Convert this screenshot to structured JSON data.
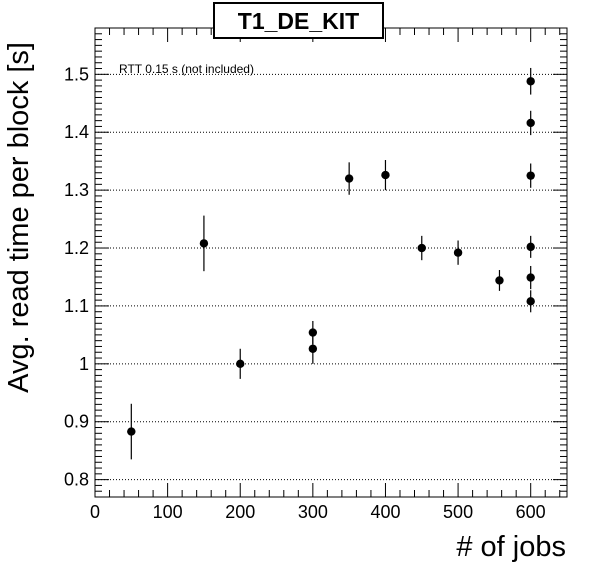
{
  "chart_data": {
    "type": "scatter",
    "title": "T1_DE_KIT",
    "xlabel": "# of jobs",
    "ylabel": "Avg. read time per block [s]",
    "annotation": "RTT 0.15 s (not included)",
    "xlim": [
      0,
      650
    ],
    "ylim": [
      0.77,
      1.58
    ],
    "x_ticks": [
      0,
      100,
      200,
      300,
      400,
      500,
      600
    ],
    "x_tick_labels": [
      "0",
      "100",
      "200",
      "300",
      "400",
      "500",
      "600"
    ],
    "y_ticks": [
      0.8,
      0.9,
      1.0,
      1.1,
      1.2,
      1.3,
      1.4,
      1.5
    ],
    "y_tick_labels": [
      "0.8",
      "0.9",
      "1",
      "1.1",
      "1.2",
      "1.3",
      "1.4",
      "1.5"
    ],
    "grid": "horizontal dotted at major y ticks",
    "marker_color": "#000000",
    "points": [
      {
        "x": 50,
        "y": 0.883,
        "err": 0.048
      },
      {
        "x": 150,
        "y": 1.208,
        "err": 0.048
      },
      {
        "x": 200,
        "y": 1.0,
        "err": 0.026
      },
      {
        "x": 300,
        "y": 1.054,
        "err": 0.02
      },
      {
        "x": 300,
        "y": 1.026,
        "err": 0.026
      },
      {
        "x": 350,
        "y": 1.32,
        "err": 0.028
      },
      {
        "x": 400,
        "y": 1.326,
        "err": 0.026
      },
      {
        "x": 450,
        "y": 1.2,
        "err": 0.021
      },
      {
        "x": 500,
        "y": 1.192,
        "err": 0.021
      },
      {
        "x": 557,
        "y": 1.144,
        "err": 0.018
      },
      {
        "x": 600,
        "y": 1.488,
        "err": 0.023
      },
      {
        "x": 600,
        "y": 1.416,
        "err": 0.021
      },
      {
        "x": 600,
        "y": 1.325,
        "err": 0.021
      },
      {
        "x": 600,
        "y": 1.202,
        "err": 0.019
      },
      {
        "x": 600,
        "y": 1.149,
        "err": 0.02
      },
      {
        "x": 600,
        "y": 1.108,
        "err": 0.019
      }
    ]
  }
}
